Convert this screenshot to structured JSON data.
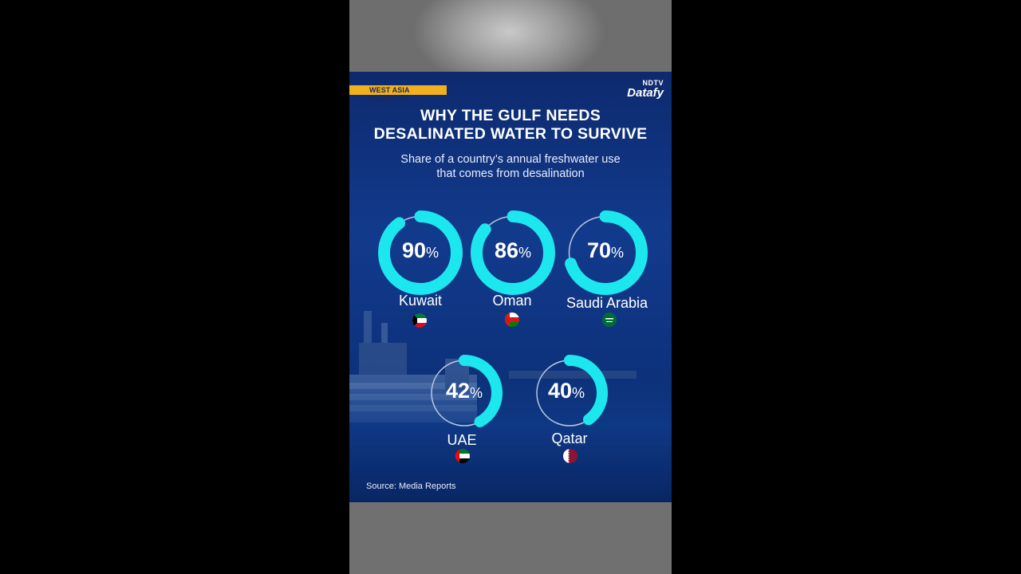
{
  "tag": "WEST ASIA CONFLICT",
  "brand": {
    "top": "NDTV",
    "bottom": "Datafy"
  },
  "title_line1": "WHY THE GULF NEEDS",
  "title_line2": "DESALINATED WATER TO SURVIVE",
  "subtitle_line1": "Share of a country’s annual freshwater use",
  "subtitle_line2": "that comes from desalination",
  "source": "Source: Media Reports",
  "colors": {
    "ring": "#1de7ee",
    "track": "#b9c7e3",
    "tag": "#f2b01e"
  },
  "chart_data": {
    "type": "donut",
    "title": "WHY THE GULF NEEDS DESALINATED WATER TO SURVIVE",
    "subtitle": "Share of a country’s annual freshwater use that comes from desalination",
    "unit": "%",
    "items": [
      {
        "country": "Kuwait",
        "value": 90,
        "label": "90",
        "flag": "kuwait-flag"
      },
      {
        "country": "Oman",
        "value": 86,
        "label": "86",
        "flag": "oman-flag"
      },
      {
        "country": "Saudi Arabia",
        "value": 70,
        "label": "70",
        "flag": "saudi-arabia-flag"
      },
      {
        "country": "UAE",
        "value": 42,
        "label": "42",
        "flag": "uae-flag"
      },
      {
        "country": "Qatar",
        "value": 40,
        "label": "40",
        "flag": "qatar-flag"
      }
    ]
  }
}
